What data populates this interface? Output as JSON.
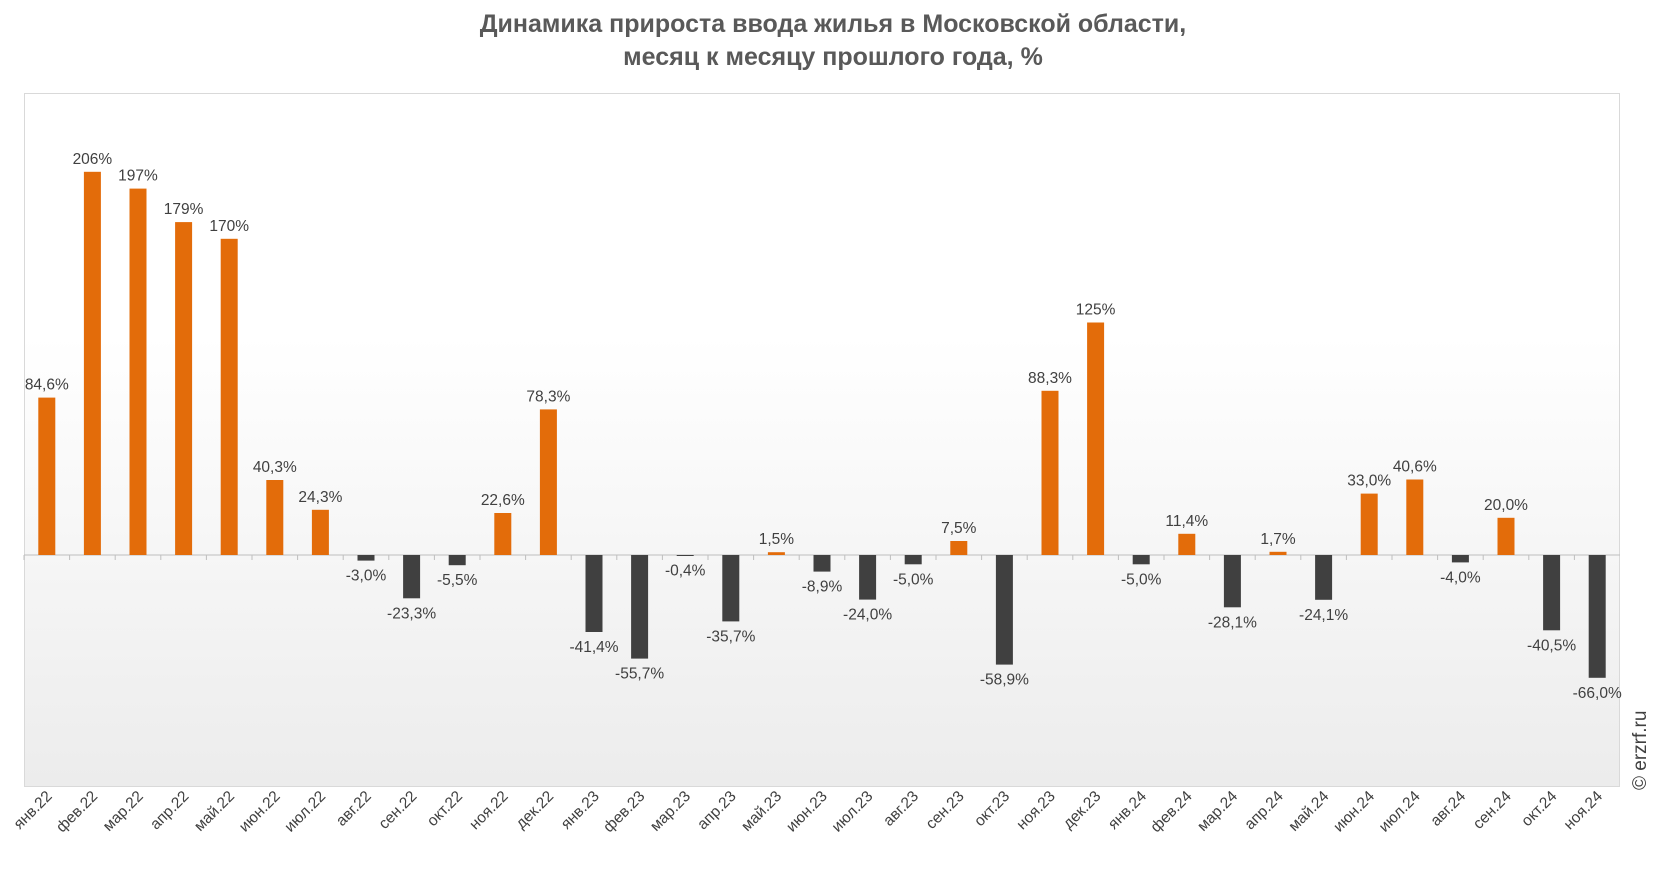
{
  "title_line1": "Динамика прироста ввода жилья в Московской области,",
  "title_line2": "месяц к месяцу прошлого года, %",
  "watermark": "© erzrf.ru",
  "colors": {
    "positive": "#E36C0A",
    "negative": "#404040"
  },
  "chart_data": {
    "type": "bar",
    "title": "Динамика прироста ввода жилья в Московской области, месяц к месяцу прошлого года, %",
    "categories": [
      "янв.22",
      "фев.22",
      "мар.22",
      "апр.22",
      "май.22",
      "июн.22",
      "июл.22",
      "авг.22",
      "сен.22",
      "окт.22",
      "ноя.22",
      "дек.22",
      "янв.23",
      "фев.23",
      "мар.23",
      "апр.23",
      "май.23",
      "июн.23",
      "июл.23",
      "авг.23",
      "сен.23",
      "окт.23",
      "ноя.23",
      "дек.23",
      "янв.24",
      "фев.24",
      "мар.24",
      "апр.24",
      "май.24",
      "июн.24",
      "июл.24",
      "авг.24",
      "сен.24",
      "окт.24",
      "ноя.24"
    ],
    "values": [
      84.6,
      206,
      197,
      179,
      170,
      40.3,
      24.3,
      -3.0,
      -23.3,
      -5.5,
      22.6,
      78.3,
      -41.4,
      -55.7,
      -0.4,
      -35.7,
      1.5,
      -8.9,
      -24.0,
      -5.0,
      7.5,
      -58.9,
      88.3,
      125,
      -5.0,
      11.4,
      -28.1,
      1.7,
      -24.1,
      33.0,
      40.6,
      -4.0,
      20.0,
      -40.5,
      -66.0
    ],
    "labels": [
      "84,6%",
      "206%",
      "197%",
      "179%",
      "170%",
      "40,3%",
      "24,3%",
      "-3,0%",
      "-23,3%",
      "-5,5%",
      "22,6%",
      "78,3%",
      "-41,4%",
      "-55,7%",
      "-0,4%",
      "-35,7%",
      "1,5%",
      "-8,9%",
      "-24,0%",
      "-5,0%",
      "7,5%",
      "-58,9%",
      "88,3%",
      "125%",
      "-5,0%",
      "11,4%",
      "-28,1%",
      "1,7%",
      "-24,1%",
      "33,0%",
      "40,6%",
      "-4,0%",
      "20,0%",
      "-40,5%",
      "-66,0%"
    ],
    "ylim": [
      -100,
      250
    ],
    "grid": false,
    "legend": "none"
  }
}
